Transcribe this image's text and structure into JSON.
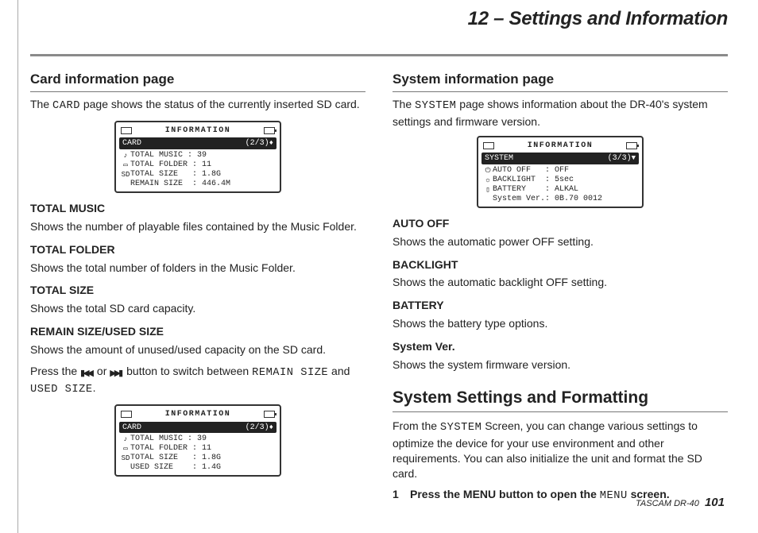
{
  "chapter": {
    "title": "12 – Settings and Information"
  },
  "left": {
    "h2": "Card information page",
    "intro_pre": "The ",
    "intro_lcd": "CARD",
    "intro_post": " page shows the status of the currently inserted SD card.",
    "lcd1": {
      "title": "INFORMATION",
      "tab_name": "CARD",
      "tab_page": "(2/3)",
      "rows": [
        {
          "icon": "♪",
          "label": "TOTAL MUSIC",
          "value": "39"
        },
        {
          "icon": "▭",
          "label": "TOTAL FOLDER",
          "value": "11"
        },
        {
          "icon": "SD",
          "label": "TOTAL SIZE",
          "value": "1.8G"
        },
        {
          "icon": "",
          "label": "REMAIN SIZE",
          "value": "446.4M"
        }
      ]
    },
    "terms": [
      {
        "t": "TOTAL MUSIC",
        "d": "Shows the number of playable files contained by the Music Folder."
      },
      {
        "t": "TOTAL FOLDER",
        "d": "Shows the total number of folders in the Music Folder."
      },
      {
        "t": "TOTAL SIZE",
        "d": "Shows the total SD card capacity."
      },
      {
        "t": "REMAIN SIZE/USED SIZE",
        "d": "Shows the amount of unused/used capacity on the SD card."
      }
    ],
    "press_pre": "Press the ",
    "press_mid": " or ",
    "press_post1": " button to switch between ",
    "press_lcd1": "REMAIN SIZE",
    "press_and": " and ",
    "press_lcd2": "USED SIZE",
    "press_end": ".",
    "lcd2": {
      "title": "INFORMATION",
      "tab_name": "CARD",
      "tab_page": "(2/3)",
      "rows": [
        {
          "icon": "♪",
          "label": "TOTAL MUSIC",
          "value": "39"
        },
        {
          "icon": "▭",
          "label": "TOTAL FOLDER",
          "value": "11"
        },
        {
          "icon": "SD",
          "label": "TOTAL SIZE",
          "value": "1.8G"
        },
        {
          "icon": "",
          "label": "USED SIZE",
          "value": "1.4G"
        }
      ]
    }
  },
  "right": {
    "h2": "System information page",
    "intro_pre": "The ",
    "intro_lcd": "SYSTEM",
    "intro_post": " page shows information about the DR-40's system settings and firmware version.",
    "lcd": {
      "title": "INFORMATION",
      "tab_name": "SYSTEM",
      "tab_page": "(3/3)",
      "rows": [
        {
          "icon": "⏻",
          "label": "AUTO OFF",
          "value": "OFF"
        },
        {
          "icon": "☼",
          "label": "BACKLIGHT",
          "value": "5sec"
        },
        {
          "icon": "▯",
          "label": "BATTERY",
          "value": "ALKAL"
        },
        {
          "icon": "",
          "label": "System Ver.",
          "value": "0B.70 0012"
        }
      ]
    },
    "terms": [
      {
        "t": "AUTO OFF",
        "d": "Shows the automatic power OFF setting."
      },
      {
        "t": "BACKLIGHT",
        "d": "Shows the automatic backlight OFF setting."
      },
      {
        "t": "BATTERY",
        "d": "Shows the battery type options."
      },
      {
        "t": "System Ver.",
        "d": "Shows the system firmware version."
      }
    ],
    "h1": "System Settings and Formatting",
    "para_pre": "From the ",
    "para_lcd": "SYSTEM",
    "para_post": " Screen, you can change various settings to optimize the device for your use environment and other requirements. You can also initialize the unit and format the SD card.",
    "step1_num": "1",
    "step1_pre": "Press the MENU button to open the ",
    "step1_lcd": "MENU",
    "step1_post": " screen."
  },
  "footer": {
    "product": "TASCAM DR-40",
    "page": "101"
  }
}
